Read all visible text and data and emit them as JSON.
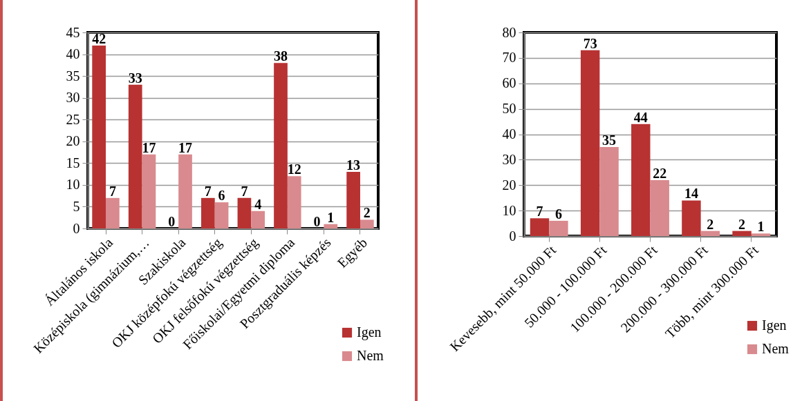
{
  "chart_data": [
    {
      "type": "bar",
      "categories": [
        "Általános iskola",
        "Középiskola (gimnázium,…",
        "Szakiskola",
        "OKJ középfokú végzettség",
        "OKJ felsőfokú végzettség",
        "Főiskolai/Egyetmi diploma",
        "Posztgraduális képzés",
        "Egyéb"
      ],
      "series": [
        {
          "name": "Igen",
          "color": "#b83232",
          "values": [
            42,
            33,
            0,
            7,
            7,
            38,
            0,
            13
          ]
        },
        {
          "name": "Nem",
          "color": "#d98a8e",
          "values": [
            7,
            17,
            17,
            6,
            4,
            12,
            1,
            2
          ]
        }
      ],
      "ylim": [
        0,
        45
      ],
      "yticks": [
        0,
        5,
        10,
        15,
        20,
        25,
        30,
        35,
        40,
        45
      ],
      "grid": "y",
      "legend": "bottom right",
      "data_labels": true
    },
    {
      "type": "bar",
      "categories": [
        "Kevesebb, mint 50.000 Ft",
        "50.000 - 100.000 Ft",
        "100.000 - 200.000 Ft",
        "200.000 - 300.000 Ft",
        "Több, mint 300.000 Ft"
      ],
      "series": [
        {
          "name": "Igen",
          "color": "#b83232",
          "values": [
            7,
            73,
            44,
            14,
            2
          ]
        },
        {
          "name": "Nem",
          "color": "#d98a8e",
          "values": [
            6,
            35,
            22,
            2,
            1
          ]
        }
      ],
      "ylim": [
        0,
        80
      ],
      "yticks": [
        0,
        10,
        20,
        30,
        40,
        50,
        60,
        70,
        80
      ],
      "grid": "y",
      "legend": "bottom right",
      "data_labels": true
    }
  ]
}
